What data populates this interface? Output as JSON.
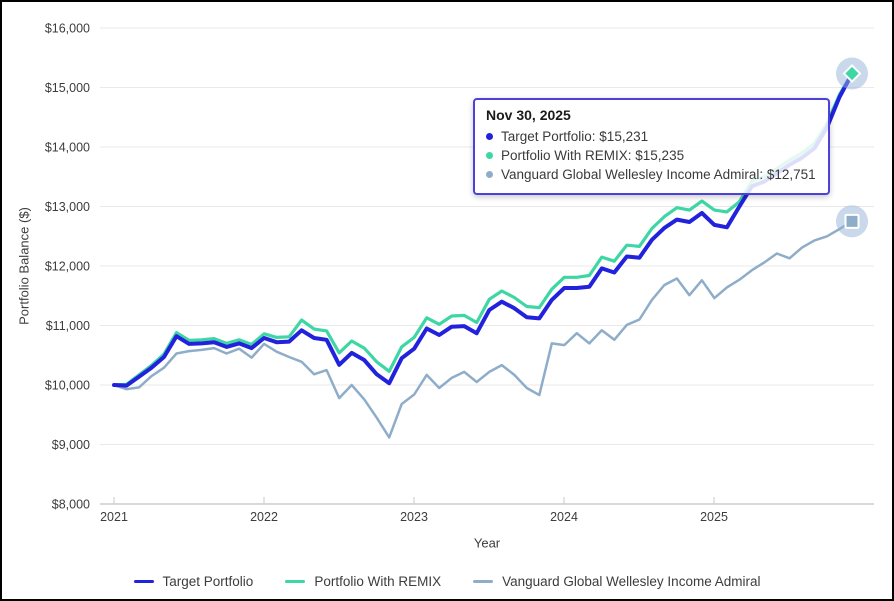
{
  "chart": {
    "y_axis": {
      "title": "Portfolio Balance ($)",
      "tick_labels": [
        "$8,000",
        "$9,000",
        "$10,000",
        "$11,000",
        "$12,000",
        "$13,000",
        "$14,000",
        "$15,000",
        "$16,000"
      ]
    },
    "x_axis": {
      "title": "Year",
      "tick_labels": [
        "2021",
        "2022",
        "2023",
        "2024",
        "2025"
      ]
    },
    "legend": {
      "items": [
        {
          "id": "target-portfolio",
          "label": "Target Portfolio",
          "color": "#2222dd"
        },
        {
          "id": "portfolio-with-remix",
          "label": "Portfolio With REMIX",
          "color": "#3dd6a4"
        },
        {
          "id": "vanguard-global-wellesley-income-admiral",
          "label": "Vanguard Global Wellesley Income Admiral",
          "color": "#8fadc8"
        }
      ]
    },
    "tooltip": {
      "title": "Nov 30, 2025",
      "border_color": "#4c42da",
      "rows": [
        {
          "text": "Target Portfolio: $15,231",
          "color": "#2222dd"
        },
        {
          "text": "Portfolio With REMIX: $15,235",
          "color": "#3dd6a4"
        },
        {
          "text": "Vanguard Global Wellesley Income Admiral: $12,751",
          "color": "#8fadc8"
        }
      ]
    }
  },
  "chart_data": {
    "type": "line",
    "title": "",
    "xlabel": "Year",
    "ylabel": "Portfolio Balance ($)",
    "x_unit": "month",
    "x_start": "Dec 2020",
    "x_end": "Nov 2025",
    "x_tick_years": [
      2021,
      2022,
      2023,
      2024,
      2025
    ],
    "ylim": [
      8000,
      16000
    ],
    "y_tick_step": 1000,
    "grid": "horizontal-only",
    "legend_position": "bottom",
    "hover_point": {
      "date": "Nov 30, 2025",
      "values": {
        "Target Portfolio": 15231,
        "Portfolio With REMIX": 15235,
        "Vanguard Global Wellesley Income Admiral": 12751
      }
    },
    "series": [
      {
        "name": "Target Portfolio",
        "id": "target-portfolio",
        "color": "#2222dd",
        "width": 4,
        "end_marker": "none",
        "values": [
          10000,
          9990,
          10140,
          10290,
          10470,
          10820,
          10690,
          10700,
          10720,
          10640,
          10700,
          10620,
          10790,
          10720,
          10730,
          10920,
          10790,
          10760,
          10340,
          10540,
          10420,
          10180,
          10030,
          10450,
          10610,
          10950,
          10840,
          10980,
          10990,
          10870,
          11260,
          11400,
          11290,
          11140,
          11120,
          11430,
          11630,
          11630,
          11650,
          11960,
          11890,
          12160,
          12140,
          12440,
          12640,
          12780,
          12740,
          12890,
          12690,
          12650,
          13000,
          13340,
          13420,
          13560,
          13700,
          13820,
          13980,
          14330,
          14840,
          15231
        ]
      },
      {
        "name": "Portfolio With REMIX",
        "id": "portfolio-with-remix",
        "color": "#3dd6a4",
        "width": 3.2,
        "end_marker": "diamond",
        "values": [
          10000,
          10010,
          10170,
          10330,
          10520,
          10880,
          10750,
          10760,
          10780,
          10700,
          10760,
          10680,
          10860,
          10800,
          10810,
          11090,
          10940,
          10910,
          10540,
          10740,
          10620,
          10390,
          10230,
          10640,
          10800,
          11130,
          11020,
          11160,
          11170,
          11050,
          11440,
          11580,
          11470,
          11320,
          11300,
          11610,
          11810,
          11810,
          11840,
          12150,
          12080,
          12350,
          12330,
          12630,
          12830,
          12980,
          12940,
          13090,
          12940,
          12910,
          13080,
          13430,
          13500,
          13640,
          13780,
          13900,
          14060,
          14400,
          14880,
          15235
        ]
      },
      {
        "name": "Vanguard Global Wellesley Income Admiral",
        "id": "vanguard-global-wellesley-income-admiral",
        "color": "#8fadc8",
        "width": 2.5,
        "end_marker": "square",
        "values": [
          10000,
          9930,
          9960,
          10150,
          10290,
          10530,
          10570,
          10590,
          10620,
          10530,
          10610,
          10460,
          10690,
          10560,
          10470,
          10390,
          10180,
          10250,
          9780,
          10000,
          9760,
          9450,
          9120,
          9680,
          9840,
          10170,
          9950,
          10120,
          10220,
          10050,
          10220,
          10335,
          10170,
          9950,
          9830,
          10700,
          10670,
          10870,
          10700,
          10920,
          10760,
          11010,
          11100,
          11430,
          11680,
          11790,
          11510,
          11760,
          11460,
          11640,
          11770,
          11930,
          12060,
          12210,
          12130,
          12310,
          12430,
          12500,
          12620,
          12751
        ]
      }
    ]
  }
}
